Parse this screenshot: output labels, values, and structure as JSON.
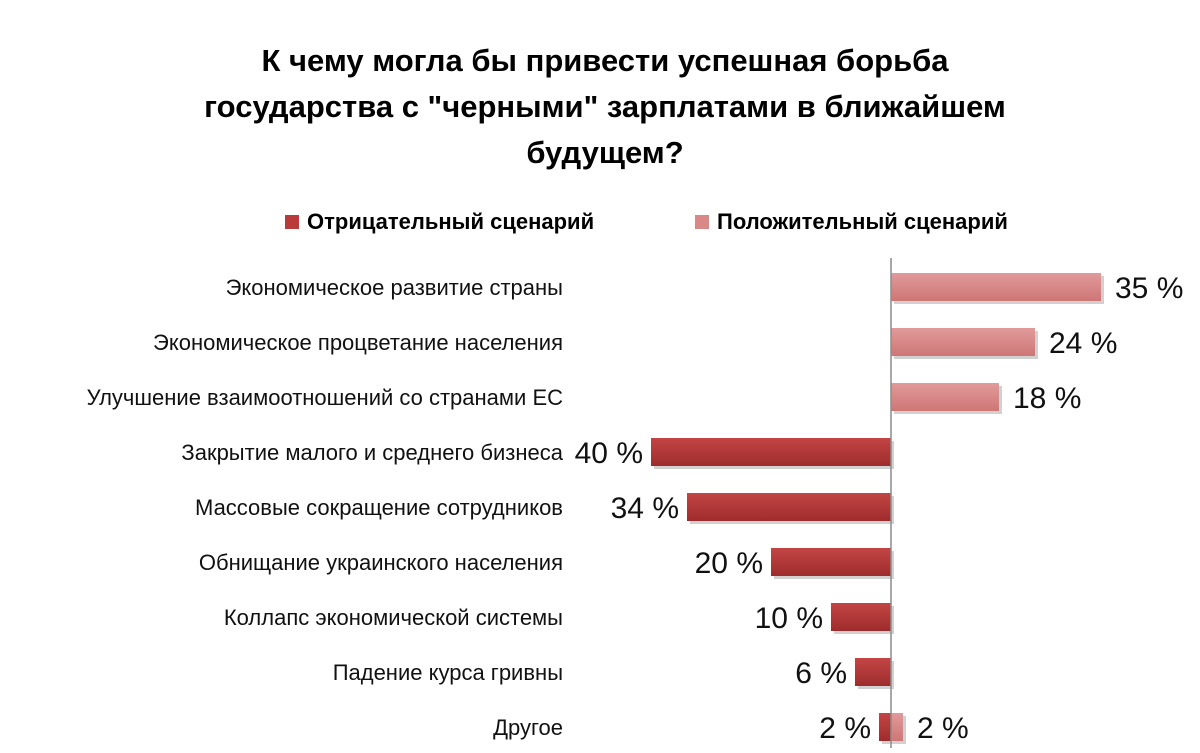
{
  "chart_data": {
    "type": "bar",
    "orientation": "horizontal",
    "title": "К чему могла бы привести успешная борьба государства с \"черными\" зарплатами в ближайшем будущем?",
    "title_lines": [
      "К чему могла бы привести успешная борьба",
      "государства с \"черными\" зарплатами в ближайшем",
      "будущем?"
    ],
    "legend_position": "top",
    "grid": false,
    "value_unit": "%",
    "categories": [
      "Экономическое развитие страны",
      "Экономическое процветание населения",
      "Улучшение взаимоотношений со странами ЕС",
      "Закрытие малого и среднего бизнеса",
      "Массовые сокращение сотрудников",
      "Обнищание украинского населения",
      "Коллапс экономической системы",
      "Падение курса гривны",
      "Другое"
    ],
    "series": [
      {
        "name": "Отрицательный сценарий",
        "direction": "left",
        "color": "#b83a3a",
        "values": [
          null,
          null,
          null,
          40,
          34,
          20,
          10,
          6,
          2
        ],
        "labels": [
          "",
          "",
          "",
          "40 %",
          "34 %",
          "20 %",
          "10 %",
          "6 %",
          "2 %"
        ]
      },
      {
        "name": "Положительный сценарий",
        "direction": "right",
        "color": "#d98888",
        "values": [
          35,
          24,
          18,
          null,
          null,
          null,
          null,
          null,
          2
        ],
        "labels": [
          "35 %",
          "24 %",
          "18 %",
          "",
          "",
          "",
          "",
          "",
          "2 %"
        ]
      }
    ]
  }
}
